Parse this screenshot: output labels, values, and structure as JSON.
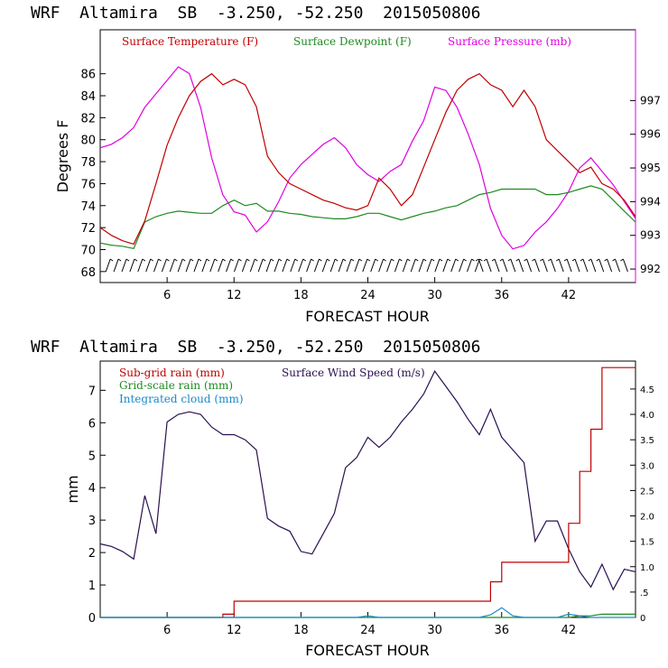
{
  "colors": {
    "temperature": "#c00000",
    "dewpoint": "#1f8a1f",
    "pressure": "#e000e0",
    "subgrid": "#c00000",
    "gridscale": "#1f8a1f",
    "cloud": "#1a8ac8",
    "wind": "#2a1050"
  },
  "chart_data": [
    {
      "type": "line",
      "header": "WRF  Altamira  SB  -3.250, -52.250  2015050806",
      "xlabel": "FORECAST HOUR",
      "ylabel": "Degrees F",
      "xlim": [
        0,
        48
      ],
      "ylim": [
        67,
        90
      ],
      "y2lim": [
        991.6,
        999.1
      ],
      "xticks": [
        "6",
        "12",
        "18",
        "24",
        "30",
        "36",
        "42"
      ],
      "yticks": [
        "68",
        "70",
        "72",
        "74",
        "76",
        "78",
        "80",
        "82",
        "84",
        "86"
      ],
      "y2ticks": [
        "992",
        "993",
        "994",
        "995",
        "996",
        "997"
      ],
      "legend": [
        "Surface Temperature (F)",
        "Surface Dewpoint (F)",
        "Surface Pressure (mb)"
      ],
      "x": [
        0,
        1,
        2,
        3,
        4,
        5,
        6,
        7,
        8,
        9,
        10,
        11,
        12,
        13,
        14,
        15,
        16,
        17,
        18,
        19,
        20,
        21,
        22,
        23,
        24,
        25,
        26,
        27,
        28,
        29,
        30,
        31,
        32,
        33,
        34,
        35,
        36,
        37,
        38,
        39,
        40,
        41,
        42,
        43,
        44,
        45,
        46,
        47,
        48
      ],
      "series": [
        {
          "name": "Surface Temperature (F)",
          "axis": "left",
          "values": [
            72.0,
            71.3,
            70.8,
            70.5,
            72.6,
            76.0,
            79.5,
            82.0,
            84.0,
            85.3,
            86.0,
            85.0,
            85.5,
            85.0,
            83.0,
            78.5,
            77.0,
            76.0,
            75.5,
            75.0,
            74.5,
            74.2,
            73.8,
            73.6,
            74.0,
            76.5,
            75.5,
            74.0,
            75.0,
            77.5,
            80.0,
            82.5,
            84.5,
            85.5,
            86.0,
            85.0,
            84.5,
            83.0,
            84.5,
            83.0,
            80.0,
            79.0,
            78.0,
            77.0,
            77.5,
            76.0,
            75.5,
            74.5,
            73.0
          ]
        },
        {
          "name": "Surface Dewpoint (F)",
          "axis": "left",
          "values": [
            70.6,
            70.4,
            70.3,
            70.1,
            72.5,
            73.0,
            73.3,
            73.5,
            73.4,
            73.3,
            73.3,
            74.0,
            74.5,
            74.0,
            74.2,
            73.5,
            73.5,
            73.3,
            73.2,
            73.0,
            72.9,
            72.8,
            72.8,
            73.0,
            73.3,
            73.3,
            73.0,
            72.7,
            73.0,
            73.3,
            73.5,
            73.8,
            74.0,
            74.5,
            75.0,
            75.2,
            75.5,
            75.5,
            75.5,
            75.5,
            75.0,
            75.0,
            75.2,
            75.5,
            75.8,
            75.5,
            74.5,
            73.5,
            72.5
          ]
        },
        {
          "name": "Surface Pressure (mb)",
          "axis": "right",
          "values": [
            995.6,
            995.7,
            995.9,
            996.2,
            996.8,
            997.2,
            997.6,
            998.0,
            997.8,
            996.8,
            995.3,
            994.2,
            993.7,
            993.6,
            993.1,
            993.4,
            994.0,
            994.7,
            995.1,
            995.4,
            995.7,
            995.9,
            995.6,
            995.1,
            994.8,
            994.6,
            994.9,
            995.1,
            995.8,
            996.4,
            997.4,
            997.3,
            996.8,
            996.0,
            995.1,
            993.8,
            993.0,
            992.6,
            992.7,
            993.1,
            993.4,
            993.8,
            994.3,
            995.0,
            995.3,
            994.9,
            994.5,
            994.0,
            993.5
          ]
        }
      ]
    },
    {
      "type": "line",
      "header": "WRF  Altamira  SB  -3.250, -52.250  2015050806",
      "xlabel": "FORECAST HOUR",
      "ylabel": "mm",
      "xlim": [
        0,
        48
      ],
      "ylim": [
        0,
        7.9
      ],
      "y2lim": [
        0,
        5.05
      ],
      "xticks": [
        "6",
        "12",
        "18",
        "24",
        "30",
        "36",
        "42"
      ],
      "yticks": [
        "0",
        "1",
        "2",
        "3",
        "4",
        "5",
        "6",
        "7"
      ],
      "y2ticks": [
        "0",
        ".5",
        "1.0",
        "1.5",
        "2.0",
        "2.5",
        "3.0",
        "3.5",
        "4.0",
        "4.5"
      ],
      "legend": [
        "Sub-grid rain (mm)",
        "Grid-scale rain (mm)",
        "Integrated cloud (mm)",
        "Surface Wind Speed (m/s)"
      ],
      "x": [
        0,
        1,
        2,
        3,
        4,
        5,
        6,
        7,
        8,
        9,
        10,
        11,
        12,
        13,
        14,
        15,
        16,
        17,
        18,
        19,
        20,
        21,
        22,
        23,
        24,
        25,
        26,
        27,
        28,
        29,
        30,
        31,
        32,
        33,
        34,
        35,
        36,
        37,
        38,
        39,
        40,
        41,
        42,
        43,
        44,
        45,
        46,
        47,
        48
      ],
      "series": [
        {
          "name": "Sub-grid rain (mm)",
          "axis": "left",
          "values": [
            0,
            0,
            0,
            0,
            0,
            0,
            0,
            0,
            0,
            0,
            0,
            0.1,
            0.5,
            0.5,
            0.5,
            0.5,
            0.5,
            0.5,
            0.5,
            0.5,
            0.5,
            0.5,
            0.5,
            0.5,
            0.5,
            0.5,
            0.5,
            0.5,
            0.5,
            0.5,
            0.5,
            0.5,
            0.5,
            0.5,
            0.5,
            1.1,
            1.7,
            1.7,
            1.7,
            1.7,
            1.7,
            1.7,
            2.9,
            4.5,
            5.8,
            7.7,
            7.7,
            7.7,
            7.7
          ]
        },
        {
          "name": "Grid-scale rain (mm)",
          "axis": "left",
          "values": [
            0,
            0,
            0,
            0,
            0,
            0,
            0,
            0,
            0,
            0,
            0,
            0,
            0,
            0,
            0,
            0,
            0,
            0,
            0,
            0,
            0,
            0,
            0,
            0,
            0,
            0,
            0,
            0,
            0,
            0,
            0,
            0,
            0,
            0,
            0,
            0,
            0,
            0,
            0,
            0,
            0,
            0,
            0,
            0.05,
            0.05,
            0.1,
            0.1,
            0.1,
            0.1
          ]
        },
        {
          "name": "Integrated cloud (mm)",
          "axis": "left",
          "values": [
            0,
            0,
            0,
            0,
            0,
            0,
            0,
            0,
            0,
            0,
            0,
            0,
            0,
            0,
            0,
            0,
            0,
            0,
            0,
            0,
            0,
            0,
            0,
            0,
            0.05,
            0,
            0,
            0,
            0,
            0,
            0,
            0,
            0,
            0,
            0,
            0.08,
            0.3,
            0.05,
            0,
            0,
            0,
            0,
            0.1,
            0.05,
            0,
            0,
            0,
            0,
            0
          ]
        },
        {
          "name": "Surface Wind Speed (m/s)",
          "axis": "right",
          "values": [
            1.45,
            1.4,
            1.3,
            1.15,
            2.4,
            1.65,
            3.85,
            4.0,
            4.05,
            4.0,
            3.75,
            3.6,
            3.6,
            3.5,
            3.3,
            1.95,
            1.8,
            1.7,
            1.3,
            1.25,
            1.65,
            2.05,
            2.95,
            3.15,
            3.55,
            3.35,
            3.55,
            3.85,
            4.1,
            4.4,
            4.85,
            4.55,
            4.25,
            3.9,
            3.6,
            4.1,
            3.55,
            3.3,
            3.05,
            1.5,
            1.9,
            1.9,
            1.35,
            0.9,
            0.6,
            1.05,
            0.55,
            0.95,
            0.9
          ]
        }
      ]
    }
  ]
}
